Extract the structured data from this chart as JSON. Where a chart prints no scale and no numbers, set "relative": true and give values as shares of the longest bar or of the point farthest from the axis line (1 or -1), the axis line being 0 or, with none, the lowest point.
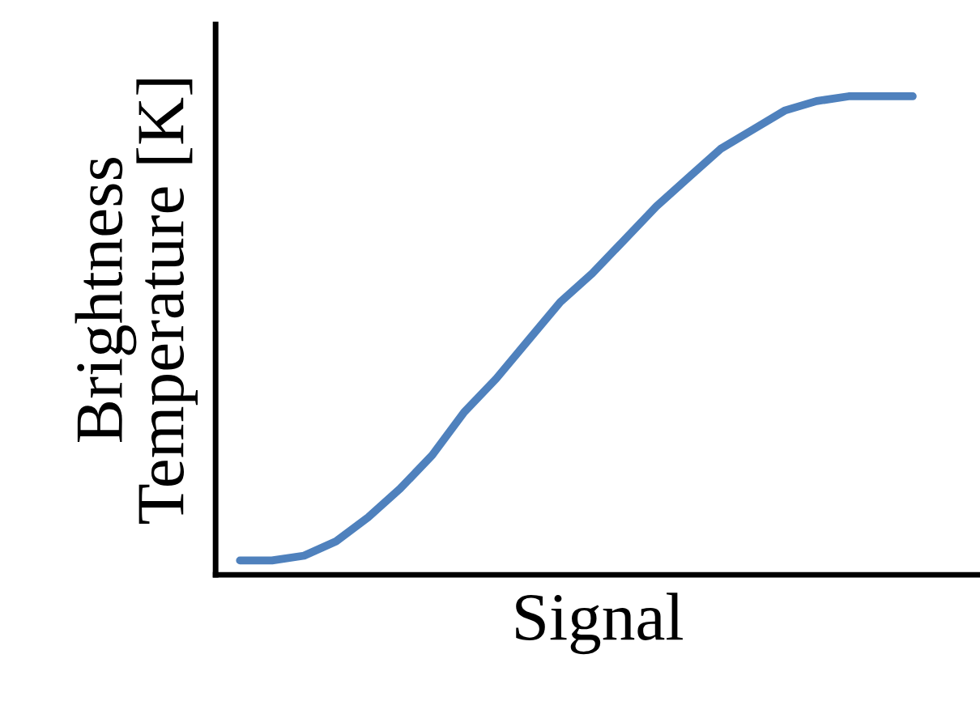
{
  "chart_data": {
    "type": "line",
    "relative": true,
    "xlabel": "Signal",
    "ylabel": "Brightness\nTemperature [K]",
    "categories": [
      null,
      null,
      null,
      null,
      null,
      null,
      null,
      null,
      null,
      null,
      null,
      null,
      null,
      null,
      null,
      null,
      null,
      null,
      null,
      null,
      null,
      null
    ],
    "series": [
      {
        "color": "#4f81bd",
        "values": [
          0.03,
          0.03,
          0.04,
          0.07,
          0.12,
          0.18,
          0.25,
          0.34,
          0.41,
          0.49,
          0.57,
          0.63,
          0.7,
          0.77,
          0.83,
          0.89,
          0.93,
          0.97,
          0.99,
          1.0,
          1.0,
          1.0
        ]
      }
    ],
    "marker": "none",
    "line_style": "solid",
    "tick_labels": false
  }
}
